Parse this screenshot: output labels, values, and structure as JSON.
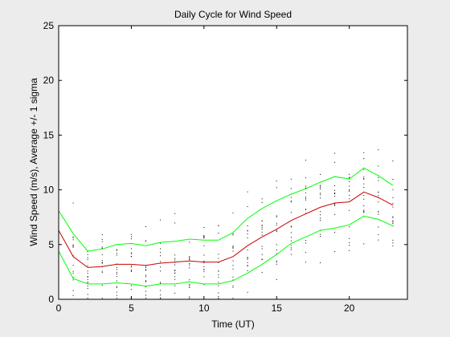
{
  "chart_data": {
    "type": "line",
    "title": "Daily Cycle for Wind Speed",
    "xlabel": "Time (UT)",
    "ylabel": "Wind Speed (m/s), Average +/- 1 sigma",
    "xlim": [
      0,
      24
    ],
    "ylim": [
      0,
      25
    ],
    "xticks": [
      0,
      5,
      10,
      15,
      20
    ],
    "yticks": [
      0,
      5,
      10,
      15,
      20,
      25
    ],
    "grid": false,
    "x": [
      0,
      1,
      2,
      3,
      4,
      5,
      6,
      7,
      8,
      9,
      10,
      11,
      12,
      13,
      14,
      15,
      16,
      17,
      18,
      19,
      20,
      21,
      22,
      23
    ],
    "series": [
      {
        "role": "plus-sigma",
        "color": "#00ff00",
        "values": [
          8.1,
          6.0,
          4.4,
          4.6,
          5.0,
          5.1,
          4.9,
          5.2,
          5.3,
          5.5,
          5.4,
          5.4,
          6.1,
          7.4,
          8.3,
          9.0,
          9.6,
          10.1,
          10.7,
          11.2,
          11.0,
          12.0,
          11.3,
          10.4
        ]
      },
      {
        "role": "average",
        "color": "#cc0000",
        "values": [
          6.3,
          3.9,
          2.9,
          3.0,
          3.2,
          3.2,
          3.1,
          3.3,
          3.4,
          3.5,
          3.4,
          3.4,
          3.9,
          4.9,
          5.7,
          6.4,
          7.2,
          7.8,
          8.4,
          8.8,
          8.9,
          9.8,
          9.3,
          8.6
        ]
      },
      {
        "role": "minus-sigma",
        "color": "#00ff00",
        "values": [
          4.4,
          1.9,
          1.4,
          1.4,
          1.5,
          1.4,
          1.2,
          1.4,
          1.4,
          1.6,
          1.4,
          1.4,
          1.7,
          2.4,
          3.2,
          4.1,
          5.1,
          5.7,
          6.3,
          6.5,
          6.8,
          7.6,
          7.3,
          6.7
        ]
      }
    ],
    "scatter_color": "#000000"
  }
}
